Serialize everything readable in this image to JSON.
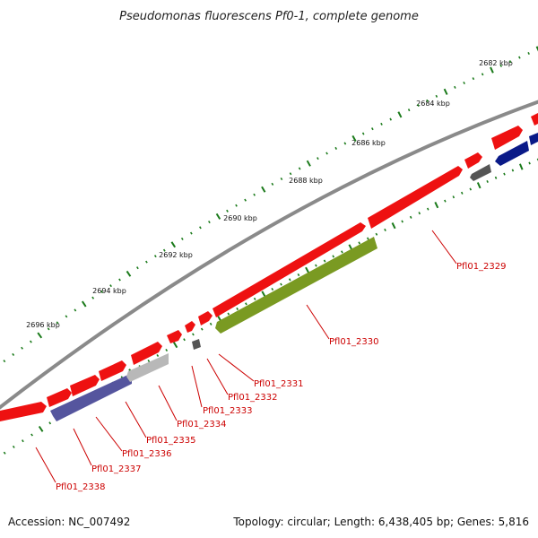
{
  "title": "Pseudomonas fluorescens Pf0-1, complete genome",
  "footer": {
    "accession": "Accession: NC_007492",
    "summary": "Topology: circular; Length: 6,438,405 bp; Genes: 5,816"
  },
  "scale_labels": [
    "2682 kbp",
    "2684 kbp",
    "2686 kbp",
    "2688 kbp",
    "2690 kbp",
    "2692 kbp",
    "2694 kbp",
    "2696 kbp"
  ],
  "gene_labels": [
    "Pfl01_2329",
    "Pfl01_2330",
    "Pfl01_2331",
    "Pfl01_2332",
    "Pfl01_2333",
    "Pfl01_2334",
    "Pfl01_2335",
    "Pfl01_2336",
    "Pfl01_2337",
    "Pfl01_2338"
  ],
  "colors": {
    "cds_forward": "#ee1111",
    "rna": "#7a9a22",
    "cds_reverse": "#55559e",
    "reverse_dark": "#0a1a88",
    "pseudo_gray": "#9a9a9a",
    "pseudo_dark": "#555555",
    "backbone": "#8a8a8a",
    "tick": "#1a7a1a",
    "label": "#cc0000"
  }
}
